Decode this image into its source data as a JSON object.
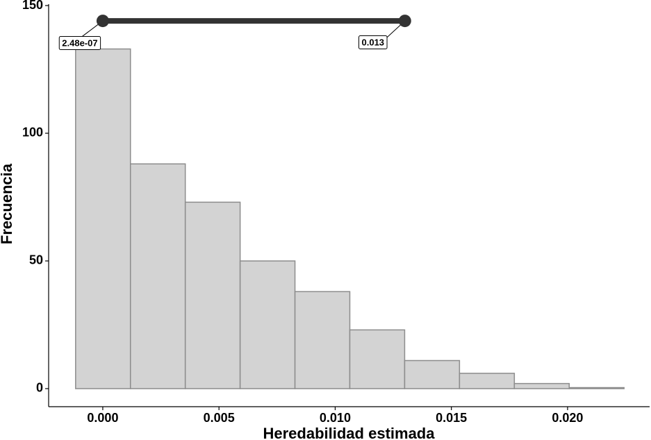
{
  "chart_data": {
    "type": "histogram",
    "x_label": "Heredabilidad estimada",
    "y_label": "Frecuencia",
    "bins": [
      -0.00117,
      0.00119,
      0.00355,
      0.00591,
      0.00827,
      0.01063,
      0.01299,
      0.01535,
      0.01771,
      0.02007,
      0.02243
    ],
    "values": [
      133,
      88,
      73,
      50,
      38,
      23,
      11,
      6,
      2,
      0.4
    ],
    "color": "#d3d3d3",
    "edge_color": "#8c8c8c",
    "interval": {
      "values": [
        2.48e-07,
        0.013
      ],
      "value_labels": [
        "2.48e-07",
        "0.013"
      ],
      "y": 144,
      "color": "#333333"
    },
    "xlim": [
      -0.00233,
      0.02353
    ],
    "ylim": [
      -7.07,
      150
    ],
    "xticks": [
      {
        "value": 0,
        "label": "0.000"
      },
      {
        "value": 0.005,
        "label": "0.005"
      },
      {
        "value": 0.01,
        "label": "0.010"
      },
      {
        "value": 0.015,
        "label": "0.015"
      },
      {
        "value": 0.02,
        "label": "0.020"
      }
    ],
    "yticks": [
      0,
      50,
      100,
      150
    ],
    "grid": false
  }
}
